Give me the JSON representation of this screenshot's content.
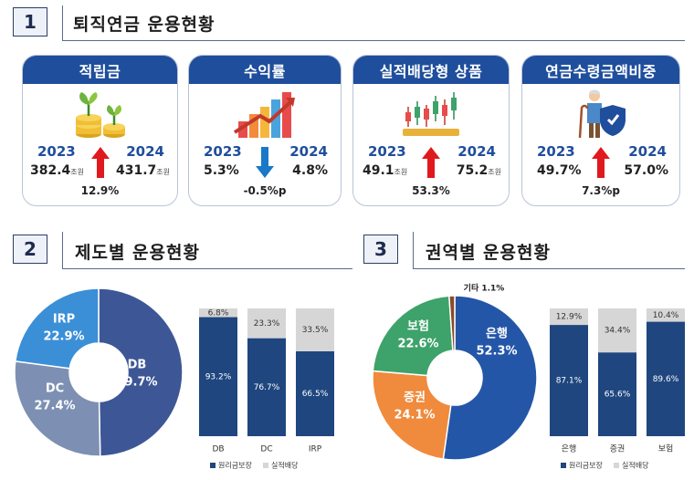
{
  "section1": {
    "num": "1",
    "title": "퇴직연금 운용현황"
  },
  "section2": {
    "num": "2",
    "title": "제도별 운용현황"
  },
  "section3": {
    "num": "3",
    "title": "권역별 운용현황"
  },
  "cards": [
    {
      "title": "적립금",
      "year_a": "2023",
      "year_b": "2024",
      "value_a": "382.4",
      "unit_a": "조원",
      "value_b": "431.7",
      "unit_b": "조원",
      "change": "12.9%",
      "direction": "up",
      "icon": "money-plant-icon"
    },
    {
      "title": "수익률",
      "year_a": "2023",
      "year_b": "2024",
      "value_a": "5.3%",
      "unit_a": "",
      "value_b": "4.8%",
      "unit_b": "",
      "change": "-0.5%p",
      "direction": "down",
      "icon": "rising-bar-chart-icon"
    },
    {
      "title": "실적배당형 상품",
      "year_a": "2023",
      "year_b": "2024",
      "value_a": "49.1",
      "unit_a": "조원",
      "value_b": "75.2",
      "unit_b": "조원",
      "change": "53.3%",
      "direction": "up",
      "icon": "candlestick-chart-icon"
    },
    {
      "title": "연금수령금액비중",
      "year_a": "2023",
      "year_b": "2024",
      "value_a": "49.7%",
      "unit_a": "",
      "value_b": "57.0%",
      "unit_b": "",
      "change": "7.3%p",
      "direction": "up",
      "icon": "elderly-shield-icon"
    }
  ],
  "colors": {
    "navy": "#1f4e9c",
    "up_arrow": "#e0191e",
    "down_arrow": "#1a78c8",
    "db": "#3d5796",
    "dc": "#7d90b3",
    "irp": "#3b8fd6",
    "bank": "#2456a8",
    "securities": "#f08a3c",
    "insurance": "#3da36a",
    "other": "#8b4a2a",
    "bar_principal": "#1f467f",
    "bar_perf": "#d6d6d6"
  },
  "chart_data": [
    {
      "type": "pie",
      "variant": "donut",
      "categories": [
        "DB",
        "DC",
        "IRP"
      ],
      "values": [
        49.7,
        27.4,
        22.9
      ],
      "labels": [
        "49.7%",
        "27.4%",
        "22.9%"
      ]
    },
    {
      "type": "bar",
      "stacked": true,
      "categories": [
        "DB",
        "DC",
        "IRP"
      ],
      "series": [
        {
          "name": "원리금보장",
          "values": [
            93.2,
            76.7,
            66.5
          ],
          "labels": [
            "93.2%",
            "76.7%",
            "66.5%"
          ]
        },
        {
          "name": "실적배당",
          "values": [
            6.8,
            23.3,
            33.5
          ],
          "labels": [
            "6.8%",
            "23.3%",
            "33.5%"
          ]
        }
      ],
      "ylim": [
        0,
        100
      ],
      "legend": "bottom"
    },
    {
      "type": "pie",
      "variant": "donut",
      "categories": [
        "은행",
        "증권",
        "보험",
        "기타"
      ],
      "values": [
        52.3,
        24.1,
        22.6,
        1.1
      ],
      "labels": [
        "52.3%",
        "24.1%",
        "22.6%",
        "1.1%"
      ]
    },
    {
      "type": "bar",
      "stacked": true,
      "categories": [
        "은행",
        "증권",
        "보험"
      ],
      "series": [
        {
          "name": "원리금보장",
          "values": [
            87.1,
            65.6,
            89.6
          ],
          "labels": [
            "87.1%",
            "65.6%",
            "89.6%"
          ]
        },
        {
          "name": "실적배당",
          "values": [
            12.9,
            34.4,
            10.4
          ],
          "labels": [
            "12.9%",
            "34.4%",
            "10.4%"
          ]
        }
      ],
      "ylim": [
        0,
        100
      ],
      "legend": "bottom"
    }
  ]
}
